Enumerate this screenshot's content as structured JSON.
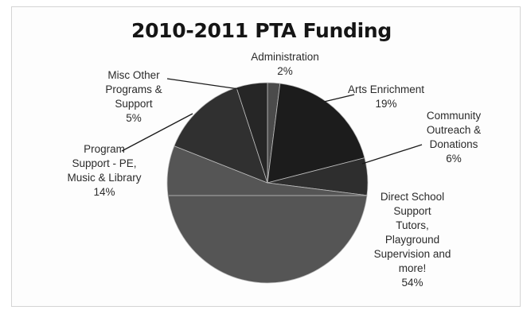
{
  "chart_data": {
    "type": "pie",
    "title": "2010-2011 PTA Funding",
    "slices": [
      {
        "lines": [
          "Administration",
          "2%"
        ],
        "value": 2,
        "color": "#4b4b4b"
      },
      {
        "lines": [
          "Arts Enrichment",
          "19%"
        ],
        "value": 19,
        "color": "#1c1c1c"
      },
      {
        "lines": [
          "Community",
          "Outreach &",
          "Donations",
          "6%"
        ],
        "value": 6,
        "color": "#2e2e2e"
      },
      {
        "lines": [
          "Direct School",
          "Support",
          "Tutors,",
          "Playground",
          "Supervision and",
          "more!",
          "54%"
        ],
        "value": 54,
        "color": "#555555"
      },
      {
        "lines": [
          "Program",
          "Support - PE,",
          "Music & Library",
          "14%"
        ],
        "value": 14,
        "color": "#303030"
      },
      {
        "lines": [
          "Misc Other",
          "Programs &",
          "Support",
          "5%"
        ],
        "value": 5,
        "color": "#262626"
      }
    ],
    "legend": "none"
  }
}
